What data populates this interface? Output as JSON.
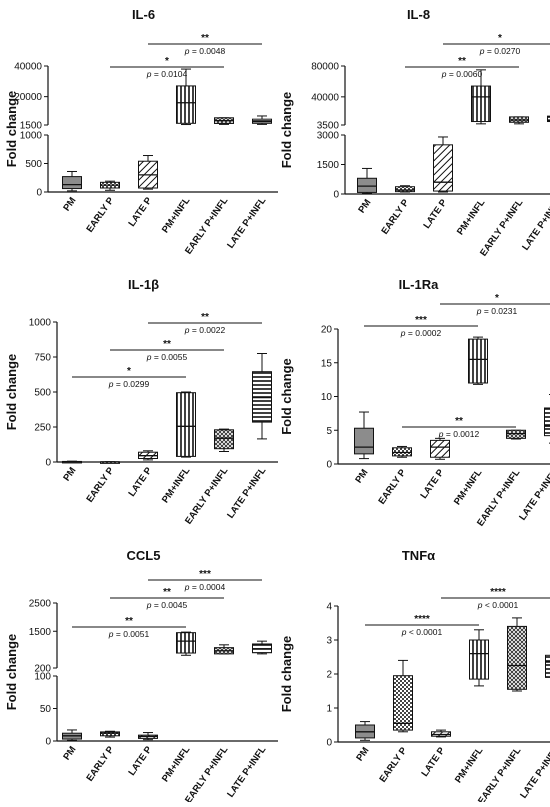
{
  "figure": {
    "categories": [
      "PM",
      "EARLY P",
      "LATE P",
      "PM+INFL",
      "EARLY P+INFL",
      "LATE P+INFL"
    ],
    "ylabel": "Fold change"
  },
  "chart_data": [
    {
      "type": "box",
      "title": "IL-6",
      "ylabel": "Fold change",
      "categories": [
        "PM",
        "EARLY P",
        "LATE P",
        "PM+INFL",
        "EARLY P+INFL",
        "LATE P+INFL"
      ],
      "axis_break": true,
      "segments": [
        {
          "range": [
            0,
            1000
          ],
          "ticks": [
            0,
            500,
            1000
          ]
        },
        {
          "range": [
            1500,
            40000
          ],
          "ticks": [
            1500,
            20000,
            40000
          ]
        }
      ],
      "boxes": [
        {
          "whisker_low": 20,
          "q1": 60,
          "median": 130,
          "q3": 270,
          "whisker_high": 360
        },
        {
          "whisker_low": 30,
          "q1": 70,
          "median": 120,
          "q3": 170,
          "whisker_high": 190
        },
        {
          "whisker_low": 50,
          "q1": 70,
          "median": 300,
          "q3": 540,
          "whisker_high": 640
        },
        {
          "whisker_low": 1800,
          "q1": 2600,
          "median": 16000,
          "q3": 27000,
          "whisker_high": 38000
        },
        {
          "whisker_low": 1900,
          "q1": 2500,
          "median": 4300,
          "q3": 6200,
          "whisker_high": 6200
        },
        {
          "whisker_low": 1900,
          "q1": 2600,
          "median": 3600,
          "q3": 5300,
          "whisker_high": 7400
        }
      ],
      "comparisons": [
        {
          "from": 2,
          "to": 5,
          "stars": "**",
          "p_prefix": "p",
          "p_text": "= 0.0048"
        },
        {
          "from": 1,
          "to": 4,
          "stars": "*",
          "p_prefix": "p",
          "p_text": "= 0.0104"
        }
      ]
    },
    {
      "type": "box",
      "title": "IL-8",
      "ylabel": "Fold change",
      "categories": [
        "PM",
        "EARLY P",
        "LATE P",
        "PM+INFL",
        "EARLY P+INFL",
        "LATE P+INFL"
      ],
      "axis_break": true,
      "segments": [
        {
          "range": [
            0,
            3000
          ],
          "ticks": [
            0,
            1500,
            3000
          ]
        },
        {
          "range": [
            3500,
            80000
          ],
          "ticks": [
            3500,
            40000,
            80000
          ]
        }
      ],
      "boxes": [
        {
          "whisker_low": 30,
          "q1": 80,
          "median": 400,
          "q3": 800,
          "whisker_high": 1300
        },
        {
          "whisker_low": 100,
          "q1": 120,
          "median": 200,
          "q3": 370,
          "whisker_high": 420
        },
        {
          "whisker_low": 100,
          "q1": 150,
          "median": 600,
          "q3": 2500,
          "whisker_high": 2900
        },
        {
          "whisker_low": 5000,
          "q1": 8000,
          "median": 40000,
          "q3": 54000,
          "whisker_high": 75000
        },
        {
          "whisker_low": 5000,
          "q1": 7000,
          "median": 10000,
          "q3": 14000,
          "whisker_high": 14000
        },
        {
          "whisker_low": 5000,
          "q1": 8000,
          "median": 10000,
          "q3": 15000,
          "whisker_high": 19000
        }
      ],
      "comparisons": [
        {
          "from": 2,
          "to": 5,
          "stars": "*",
          "p_prefix": "p",
          "p_text": "= 0.0270"
        },
        {
          "from": 1,
          "to": 4,
          "stars": "**",
          "p_prefix": "p",
          "p_text": "= 0.0060"
        }
      ]
    },
    {
      "type": "box",
      "title": "IL-1β",
      "ylabel": "Fold change",
      "categories": [
        "PM",
        "EARLY P",
        "LATE P",
        "PM+INFL",
        "EARLY P+INFL",
        "LATE P+INFL"
      ],
      "axis_break": false,
      "segments": [
        {
          "range": [
            0,
            1000
          ],
          "ticks": [
            0,
            250,
            500,
            750,
            1000
          ]
        }
      ],
      "boxes": [
        {
          "whisker_low": 0,
          "q1": 1,
          "median": 2,
          "q3": 4,
          "whisker_high": 6
        },
        {
          "whisker_low": 0,
          "q1": 0,
          "median": 1,
          "q3": 1,
          "whisker_high": 2
        },
        {
          "whisker_low": 15,
          "q1": 25,
          "median": 45,
          "q3": 70,
          "whisker_high": 80
        },
        {
          "whisker_low": 35,
          "q1": 40,
          "median": 255,
          "q3": 495,
          "whisker_high": 500
        },
        {
          "whisker_low": 75,
          "q1": 95,
          "median": 170,
          "q3": 230,
          "whisker_high": 235
        },
        {
          "whisker_low": 165,
          "q1": 285,
          "median": 460,
          "q3": 645,
          "whisker_high": 775
        }
      ],
      "comparisons": [
        {
          "from": 2,
          "to": 5,
          "stars": "**",
          "p_prefix": "p",
          "p_text": "= 0.0022"
        },
        {
          "from": 1,
          "to": 4,
          "stars": "**",
          "p_prefix": "p",
          "p_text": "= 0.0055"
        },
        {
          "from": 0,
          "to": 3,
          "stars": "*",
          "p_prefix": "p",
          "p_text": "= 0.0299"
        }
      ]
    },
    {
      "type": "box",
      "title": "IL-1Ra",
      "ylabel": "Fold change",
      "categories": [
        "PM",
        "EARLY P",
        "LATE P",
        "PM+INFL",
        "EARLY P+INFL",
        "LATE P+INFL"
      ],
      "axis_break": false,
      "segments": [
        {
          "range": [
            0,
            20
          ],
          "ticks": [
            0,
            5,
            10,
            15,
            20
          ]
        }
      ],
      "boxes": [
        {
          "whisker_low": 0.8,
          "q1": 1.5,
          "median": 2.5,
          "q3": 5.3,
          "whisker_high": 7.7
        },
        {
          "whisker_low": 1.0,
          "q1": 1.2,
          "median": 1.7,
          "q3": 2.4,
          "whisker_high": 2.6
        },
        {
          "whisker_low": 0.7,
          "q1": 1.0,
          "median": 2.5,
          "q3": 3.5,
          "whisker_high": 3.8
        },
        {
          "whisker_low": 11.8,
          "q1": 12.0,
          "median": 15.5,
          "q3": 18.5,
          "whisker_high": 18.8
        },
        {
          "whisker_low": 3.7,
          "q1": 3.8,
          "median": 4.5,
          "q3": 5.0,
          "whisker_high": 5.0
        },
        {
          "whisker_low": 3.1,
          "q1": 4.2,
          "median": 5.6,
          "q3": 8.3,
          "whisker_high": 10.3
        }
      ],
      "comparisons": [
        {
          "from": 2,
          "to": 5,
          "stars": "*",
          "p_prefix": "p",
          "p_text": "= 0.0231"
        },
        {
          "from": 0,
          "to": 3,
          "stars": "***",
          "p_prefix": "p",
          "p_text": "= 0.0002"
        },
        {
          "from": 1,
          "to": 4,
          "stars": "**",
          "p_prefix": "p",
          "p_text": "= 0.0012"
        }
      ]
    },
    {
      "type": "box",
      "title": "CCL5",
      "ylabel": "Fold change",
      "categories": [
        "PM",
        "EARLY P",
        "LATE P",
        "PM+INFL",
        "EARLY P+INFL",
        "LATE P+INFL"
      ],
      "axis_break": true,
      "segments": [
        {
          "range": [
            0,
            100
          ],
          "ticks": [
            0,
            50,
            100
          ]
        },
        {
          "range": [
            200,
            2500
          ],
          "ticks": [
            200,
            1500,
            2500
          ]
        }
      ],
      "boxes": [
        {
          "whisker_low": 1,
          "q1": 3,
          "median": 8,
          "q3": 12,
          "whisker_high": 17
        },
        {
          "whisker_low": 6,
          "q1": 8,
          "median": 12,
          "q3": 14,
          "whisker_high": 15
        },
        {
          "whisker_low": 2,
          "q1": 4,
          "median": 7,
          "q3": 9,
          "whisker_high": 13
        },
        {
          "whisker_low": 650,
          "q1": 730,
          "median": 1150,
          "q3": 1450,
          "whisker_high": 1470
        },
        {
          "whisker_low": 700,
          "q1": 700,
          "median": 810,
          "q3": 920,
          "whisker_high": 1020
        },
        {
          "whisker_low": 700,
          "q1": 740,
          "median": 880,
          "q3": 1050,
          "whisker_high": 1150
        }
      ],
      "comparisons": [
        {
          "from": 2,
          "to": 5,
          "stars": "***",
          "p_prefix": "p",
          "p_text": "= 0.0004"
        },
        {
          "from": 1,
          "to": 4,
          "stars": "**",
          "p_prefix": "p",
          "p_text": "= 0.0045"
        },
        {
          "from": 0,
          "to": 3,
          "stars": "**",
          "p_prefix": "p",
          "p_text": "= 0.0051"
        }
      ]
    },
    {
      "type": "box",
      "title": "TNFα",
      "ylabel": "Fold change",
      "categories": [
        "PM",
        "EARLY P",
        "LATE P",
        "PM+INFL",
        "EARLY P+INFL",
        "LATE P+INFL"
      ],
      "axis_break": false,
      "segments": [
        {
          "range": [
            0,
            4
          ],
          "ticks": [
            0,
            1,
            2,
            3,
            4
          ]
        }
      ],
      "boxes": [
        {
          "whisker_low": 0.05,
          "q1": 0.12,
          "median": 0.3,
          "q3": 0.5,
          "whisker_high": 0.6
        },
        {
          "whisker_low": 0.3,
          "q1": 0.35,
          "median": 0.55,
          "q3": 1.95,
          "whisker_high": 2.4
        },
        {
          "whisker_low": 0.15,
          "q1": 0.17,
          "median": 0.22,
          "q3": 0.3,
          "whisker_high": 0.35
        },
        {
          "whisker_low": 1.65,
          "q1": 1.85,
          "median": 2.6,
          "q3": 3.0,
          "whisker_high": 3.3
        },
        {
          "whisker_low": 1.5,
          "q1": 1.55,
          "median": 2.25,
          "q3": 3.4,
          "whisker_high": 3.65
        },
        {
          "whisker_low": 1.8,
          "q1": 1.9,
          "median": 2.35,
          "q3": 2.55,
          "whisker_high": 2.6
        }
      ],
      "comparisons": [
        {
          "from": 2,
          "to": 5,
          "stars": "****",
          "p_prefix": "p",
          "p_text": "< 0.0001"
        },
        {
          "from": 0,
          "to": 3,
          "stars": "****",
          "p_prefix": "p",
          "p_text": "< 0.0001"
        }
      ]
    }
  ]
}
